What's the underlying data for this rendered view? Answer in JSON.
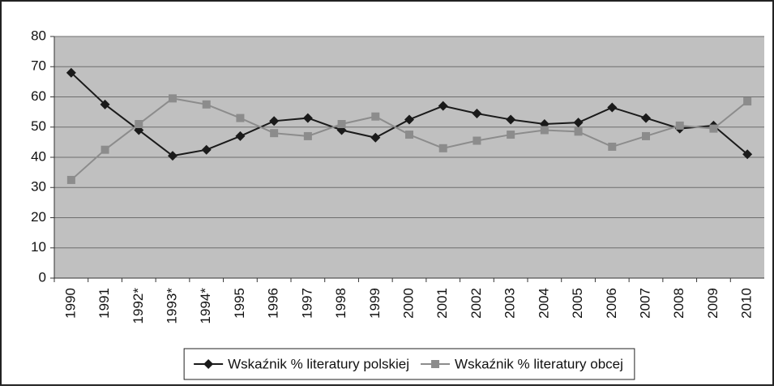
{
  "chart_data": {
    "type": "line",
    "categories": [
      "1990",
      "1991",
      "1992*",
      "1993*",
      "1994*",
      "1995",
      "1996",
      "1997",
      "1998",
      "1999",
      "2000",
      "2001",
      "2002",
      "2003",
      "2004",
      "2005",
      "2006",
      "2007",
      "2008",
      "2009",
      "2010"
    ],
    "series": [
      {
        "name": "Wskaźnik % literatury polskiej",
        "color": "#1a1a1a",
        "marker": "diamond",
        "values": [
          68,
          57.5,
          49,
          40.5,
          42.5,
          47,
          52,
          53,
          49,
          46.5,
          52.5,
          57,
          54.5,
          52.5,
          51,
          51.5,
          56.5,
          53,
          49.5,
          50.5,
          41
        ]
      },
      {
        "name": "Wskaźnik % literatury obcej",
        "color": "#8c8c8c",
        "marker": "square",
        "values": [
          32.5,
          42.5,
          51,
          59.5,
          57.5,
          53,
          48,
          47,
          51,
          53.5,
          47.5,
          43,
          45.5,
          47.5,
          49,
          48.5,
          43.5,
          47,
          50.5,
          49.5,
          58.5
        ]
      }
    ],
    "ylim": [
      0,
      80
    ],
    "yticks": [
      0,
      10,
      20,
      30,
      40,
      50,
      60,
      70,
      80
    ],
    "grid": true,
    "legend": "bottom"
  }
}
